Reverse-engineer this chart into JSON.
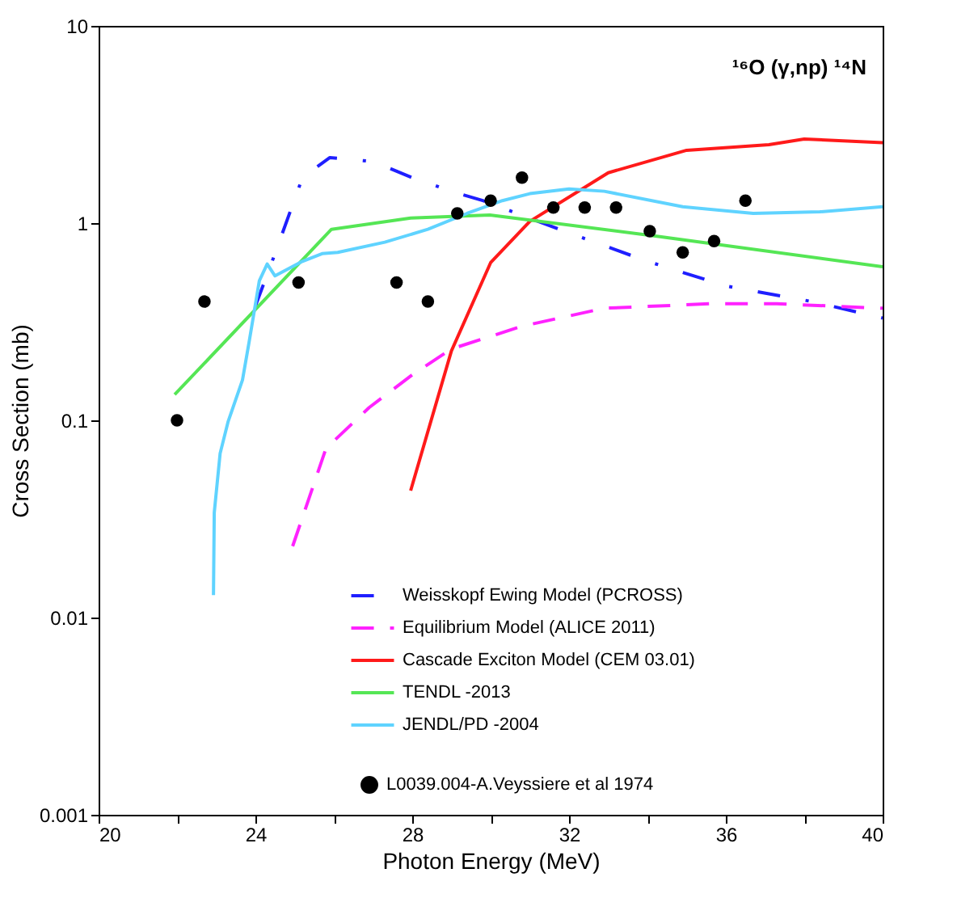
{
  "chart_data": {
    "type": "line",
    "title": "¹⁶O (γ,np) ¹⁴N",
    "xlabel": "Photon Energy (MeV)",
    "ylabel": "Cross Section (mb)",
    "log": "y",
    "grid": false,
    "legend": "bottom right",
    "xlim": [
      20,
      40
    ],
    "xticks": [
      20,
      {
        "value": 22,
        "label": null
      },
      24,
      {
        "value": 26,
        "label": null
      },
      28,
      {
        "value": 30,
        "label": null
      },
      32,
      {
        "value": 34,
        "label": null
      },
      36,
      {
        "value": 38,
        "label": null
      },
      40
    ],
    "ylim": [
      0.001,
      10
    ],
    "yticks": [
      0.001,
      0.01,
      0.1,
      1,
      10
    ],
    "series": [
      {
        "name": "Weisskopf Ewing Model (PCROSS)",
        "color": "#1f1fff",
        "line_style": "dashdot",
        "x": [
          24.0,
          24.5,
          25.2,
          25.9,
          27.0,
          28.0,
          29.0,
          29.8,
          31.75,
          34.0,
          36.0,
          38.2,
          40.0
        ],
        "values": [
          0.38,
          0.7,
          1.7,
          2.15,
          2.05,
          1.7,
          1.45,
          1.3,
          0.93,
          0.64,
          0.48,
          0.4,
          0.33
        ]
      },
      {
        "name": "Equilibrium Model (ALICE 2011)",
        "color": "#ff22ff",
        "line_style": "dashed",
        "x": [
          24.95,
          25.8,
          26.9,
          28.0,
          29.0,
          30.8,
          32.9,
          35.6,
          37.3,
          40.0
        ],
        "values": [
          0.023,
          0.072,
          0.116,
          0.17,
          0.23,
          0.3,
          0.37,
          0.39,
          0.39,
          0.37
        ]
      },
      {
        "name": "Cascade Exciton Model (CEM 03.01)",
        "color": "#ff1a1a",
        "line_style": "solid",
        "x": [
          27.96,
          29.0,
          30.0,
          31.0,
          33.0,
          35.0,
          37.1,
          38.0,
          40.0
        ],
        "values": [
          0.044,
          0.225,
          0.63,
          1.02,
          1.8,
          2.34,
          2.5,
          2.67,
          2.56
        ]
      },
      {
        "name": "L0039.004-A.Veyssiere et al 1974",
        "type": "scatter",
        "color": "#000000",
        "marker": "circle",
        "x": [
          22.0,
          22.7,
          25.1,
          27.6,
          28.4,
          29.15,
          30.0,
          30.8,
          31.6,
          32.4,
          33.2,
          34.06,
          34.9,
          35.7,
          36.5
        ],
        "values": [
          0.1,
          0.4,
          0.5,
          0.5,
          0.4,
          1.12,
          1.3,
          1.7,
          1.2,
          1.2,
          1.2,
          0.91,
          0.71,
          0.81,
          1.3
        ]
      },
      {
        "name": "TENDL -2013",
        "color": "#55e655",
        "line_style": "solid",
        "x": [
          21.94,
          25.94,
          27.96,
          29.98,
          34.2,
          40.0
        ],
        "values": [
          0.135,
          0.93,
          1.06,
          1.1,
          0.86,
          0.6
        ]
      },
      {
        "name": "JENDL/PD -2004",
        "color": "#5fd3ff",
        "line_style": "solid",
        "x": [
          22.93,
          22.95,
          23.1,
          23.3,
          23.67,
          23.84,
          24.1,
          24.3,
          24.5,
          25.2,
          25.7,
          26.1,
          27.3,
          28.4,
          29.4,
          30.3,
          31.0,
          32.0,
          32.9,
          34.9,
          36.7,
          38.4,
          40.0
        ],
        "values": [
          0.013,
          0.034,
          0.068,
          0.098,
          0.16,
          0.25,
          0.51,
          0.62,
          0.54,
          0.64,
          0.7,
          0.71,
          0.8,
          0.93,
          1.12,
          1.3,
          1.41,
          1.49,
          1.45,
          1.21,
          1.12,
          1.14,
          1.21
        ]
      }
    ]
  }
}
